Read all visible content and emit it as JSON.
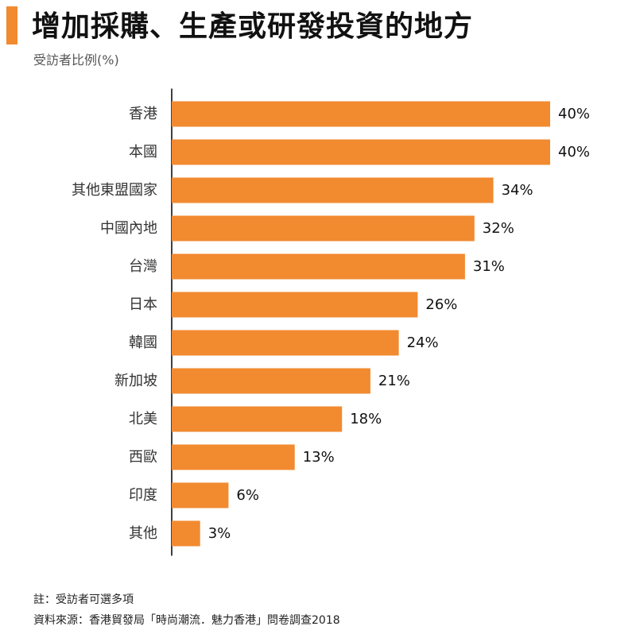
{
  "header": {
    "title": "增加採購、生產或研發投資的地方",
    "subtitle": "受訪者比例(%)"
  },
  "colors": {
    "accent": "#f28a30",
    "bar": "#f28a30",
    "axis": "#000000"
  },
  "chart_data": {
    "type": "bar",
    "orientation": "horizontal",
    "title": "增加採購、生產或研發投資的地方",
    "subtitle": "受訪者比例(%)",
    "categories": [
      "香港",
      "本國",
      "其他東盟國家",
      "中國內地",
      "台灣",
      "日本",
      "韓國",
      "新加坡",
      "北美",
      "西歐",
      "印度",
      "其他"
    ],
    "values": [
      40,
      40,
      34,
      32,
      31,
      26,
      24,
      21,
      18,
      13,
      6,
      3
    ],
    "value_labels": [
      "40%",
      "40%",
      "34%",
      "32%",
      "31%",
      "26%",
      "24%",
      "21%",
      "18%",
      "13%",
      "6%",
      "3%"
    ],
    "xlim": [
      0,
      40
    ],
    "grid": false,
    "legend": "none"
  },
  "footer": {
    "note": "註：受訪者可選多項",
    "source": "資料來源：香港貿發局「時尚潮流．魅力香港」問卷調查2018"
  }
}
